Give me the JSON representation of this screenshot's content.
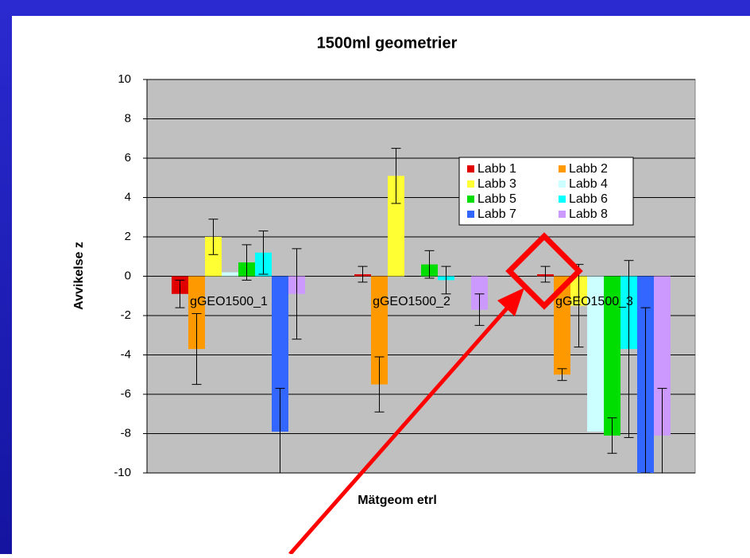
{
  "chart_data": {
    "type": "bar",
    "title": "1500ml geometrier",
    "x_label": "Mätgeom etrl",
    "y_label": "Avvikelse z",
    "categories": [
      "gGEO1500_1",
      "gGEO1500_2",
      "gGEO1500_3"
    ],
    "series": [
      {
        "name": "Labb 1",
        "color": "#e00000",
        "values": [
          -0.9,
          0.1,
          0.1
        ],
        "errors": [
          0.7,
          0.4,
          0.4
        ]
      },
      {
        "name": "Labb 2",
        "color": "#ff9900",
        "values": [
          -3.7,
          -5.5,
          -5.0
        ],
        "errors": [
          1.8,
          1.4,
          0.3
        ]
      },
      {
        "name": "Labb 3",
        "color": "#ffff33",
        "values": [
          2.0,
          5.1,
          -1.5
        ],
        "errors": [
          0.9,
          1.4,
          2.1
        ]
      },
      {
        "name": "Labb 4",
        "color": "#ccffff",
        "values": [
          0.2,
          0,
          -7.9
        ],
        "errors": [
          null,
          null,
          null
        ]
      },
      {
        "name": "Labb 5",
        "color": "#00dd00",
        "values": [
          0.7,
          0.6,
          -8.1
        ],
        "errors": [
          0.9,
          0.7,
          0.9
        ]
      },
      {
        "name": "Labb 6",
        "color": "#00ffff",
        "values": [
          1.2,
          -0.2,
          -3.7
        ],
        "errors": [
          1.1,
          0.7,
          4.5
        ]
      },
      {
        "name": "Labb 7",
        "color": "#3366ff",
        "values": [
          -7.9,
          0,
          -10
        ],
        "errors": [
          2.2,
          null,
          8.4
        ]
      },
      {
        "name": "Labb 8",
        "color": "#cc99ff",
        "values": [
          -0.9,
          -1.7,
          -8.1
        ],
        "errors": [
          2.3,
          0.8,
          2.4
        ]
      }
    ],
    "ylim": [
      -10,
      10
    ],
    "yticks": [
      -10,
      -8,
      -6,
      -4,
      -2,
      0,
      2,
      4,
      6,
      8,
      10
    ],
    "grid": true
  }
}
